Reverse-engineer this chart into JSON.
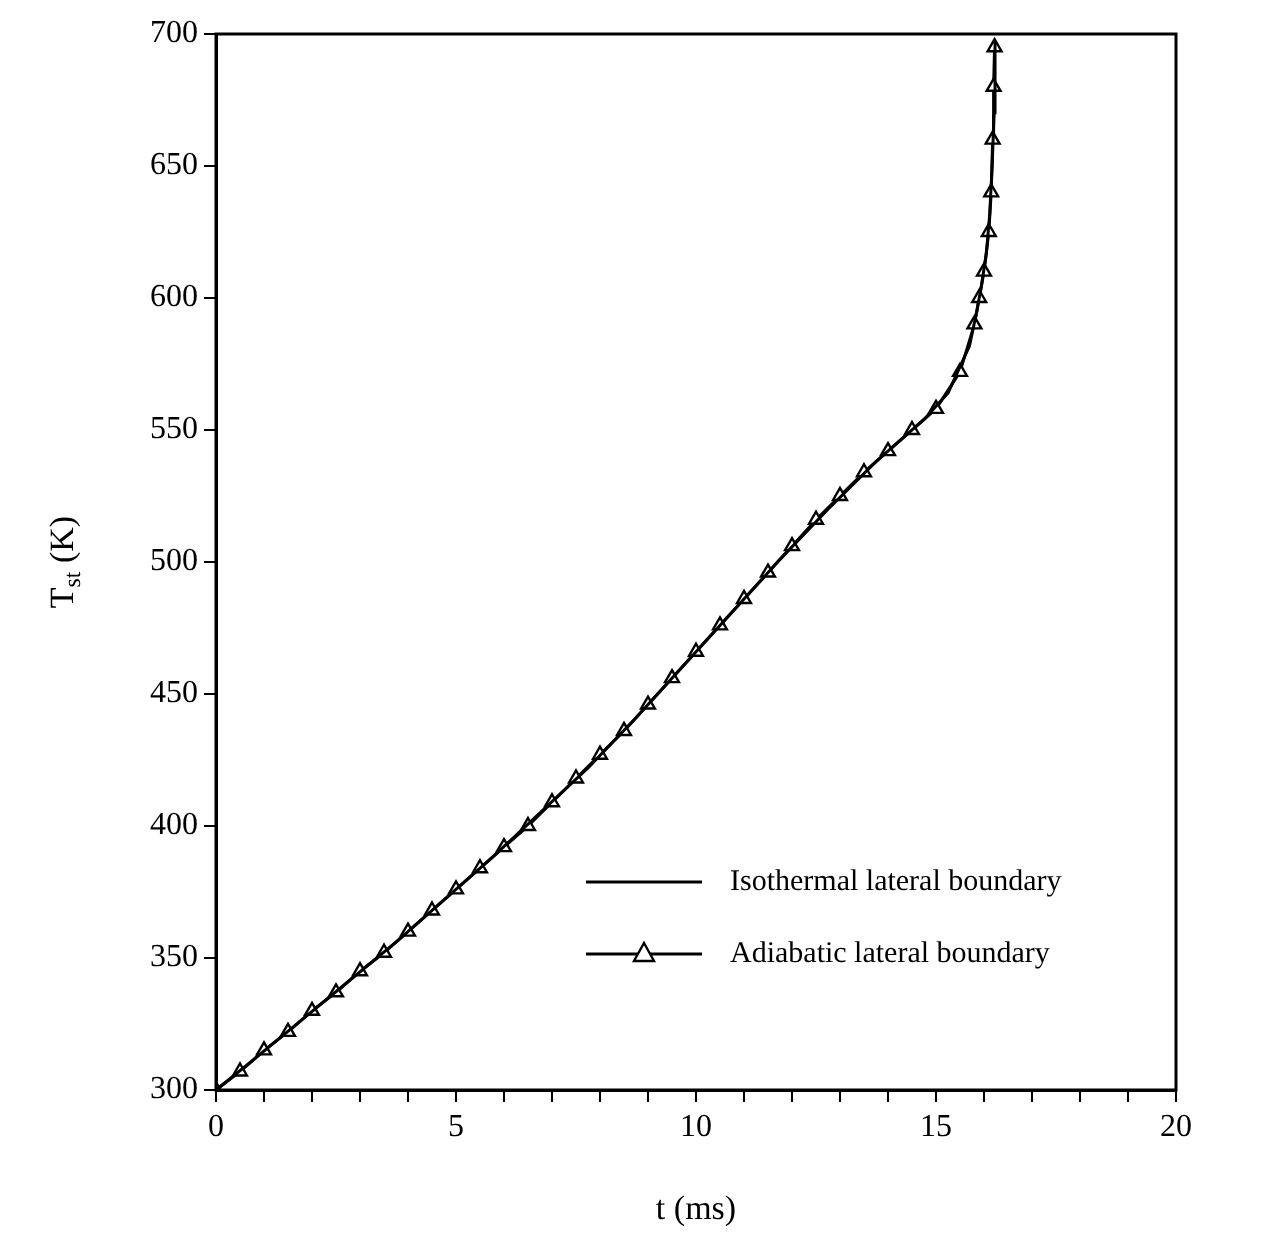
{
  "chart_data": {
    "type": "line",
    "xlabel": "t (ms)",
    "ylabel": "T$_{st}$ (K)",
    "xlim": [
      0,
      20
    ],
    "xticks": [
      0,
      {
        "value": 1,
        "label": null
      },
      {
        "value": 2,
        "label": null
      },
      {
        "value": 3,
        "label": null
      },
      {
        "value": 4,
        "label": null
      },
      5,
      {
        "value": 6,
        "label": null
      },
      {
        "value": 7,
        "label": null
      },
      {
        "value": 8,
        "label": null
      },
      {
        "value": 9,
        "label": null
      },
      10,
      {
        "value": 11,
        "label": null
      },
      {
        "value": 12,
        "label": null
      },
      {
        "value": 13,
        "label": null
      },
      {
        "value": 14,
        "label": null
      },
      15,
      {
        "value": 16,
        "label": null
      },
      {
        "value": 17,
        "label": null
      },
      {
        "value": 18,
        "label": null
      },
      {
        "value": 19,
        "label": null
      },
      20
    ],
    "ylim": [
      300,
      700
    ],
    "yticks": [
      300,
      350,
      400,
      450,
      500,
      550,
      600,
      650,
      700
    ],
    "grid": false,
    "legend": "bottom right",
    "series": [
      {
        "name": "Isothermal lateral boundary",
        "color": "#000000",
        "marker": "none",
        "x": [
          0,
          0.75,
          1.75,
          2.75,
          3.75,
          4.75,
          5.75,
          6.75,
          7.75,
          8.75,
          9.75,
          10.75,
          11.75,
          12.75,
          13.75,
          14.75,
          15.25,
          15.7,
          15.85,
          15.95,
          16.05,
          16.12,
          16.17,
          16.21,
          16.23
        ],
        "values": [
          300,
          311,
          326,
          341,
          356,
          372,
          388,
          405,
          422,
          441,
          461,
          481,
          501,
          520,
          538,
          554,
          564,
          582,
          595,
          605,
          617,
          632,
          650,
          670,
          697
        ]
      },
      {
        "name": "Adiabatic lateral boundary",
        "color": "#000000",
        "marker": "triangle",
        "x": [
          0,
          0.5,
          1,
          1.5,
          2,
          2.5,
          3,
          3.5,
          4,
          4.5,
          5,
          5.5,
          6,
          6.5,
          7,
          7.5,
          8,
          8.5,
          9,
          9.5,
          10,
          10.5,
          11,
          11.5,
          12,
          12.5,
          13,
          13.5,
          14,
          14.5,
          15,
          15.5,
          15.8,
          15.9,
          16,
          16.1,
          16.15,
          16.18,
          16.2,
          16.22
        ],
        "values": [
          300,
          307,
          315,
          322,
          330,
          337,
          345,
          352,
          360,
          368,
          376,
          384,
          392,
          400,
          409,
          418,
          427,
          436,
          446,
          456,
          466,
          476,
          486,
          496,
          506,
          516,
          525,
          534,
          542,
          550,
          558,
          572,
          590,
          600,
          610,
          625,
          640,
          660,
          680,
          695
        ]
      }
    ]
  }
}
